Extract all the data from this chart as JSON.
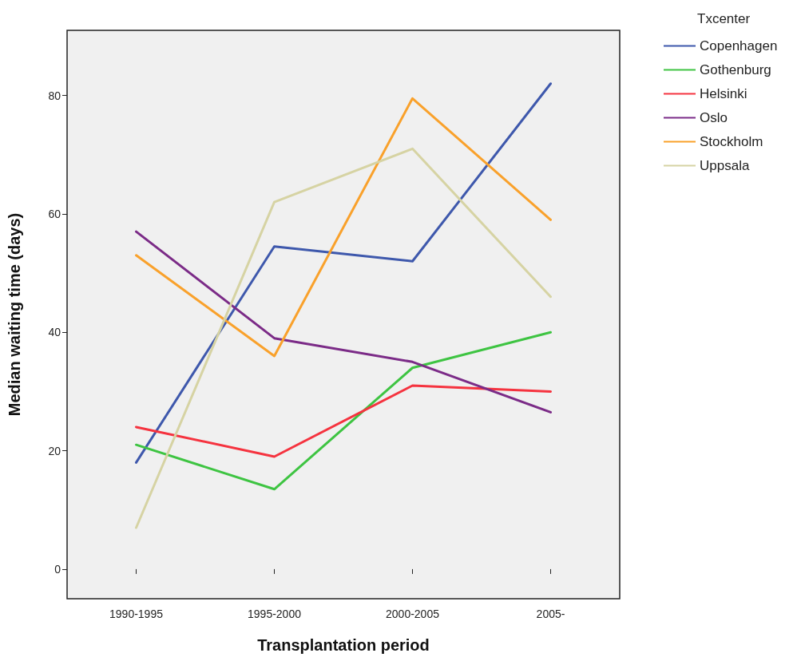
{
  "chart_data": {
    "type": "line",
    "xlabel": "Transplantation period",
    "ylabel": "Median waiting time (days)",
    "legend_title": "Txcenter",
    "categories": [
      "1990-1995",
      "1995-2000",
      "2000-2005",
      "2005-"
    ],
    "ylim": [
      -5,
      91
    ],
    "yticks": [
      0,
      20,
      40,
      60,
      80
    ],
    "grid": false,
    "legend": "top right",
    "marker": "none",
    "line_style": "solid",
    "series": [
      {
        "name": "Copenhagen",
        "color": "#3e58ac",
        "values": [
          18,
          54.5,
          52,
          82
        ]
      },
      {
        "name": "Gothenburg",
        "color": "#3ec442",
        "values": [
          21,
          13.5,
          34,
          40
        ]
      },
      {
        "name": "Helsinki",
        "color": "#f5333f",
        "values": [
          24,
          19,
          31,
          30
        ]
      },
      {
        "name": "Oslo",
        "color": "#7b2b87",
        "values": [
          57,
          39,
          35,
          26.5
        ]
      },
      {
        "name": "Stockholm",
        "color": "#f9a12b",
        "values": [
          53,
          36,
          79.5,
          59
        ]
      },
      {
        "name": "Uppsala",
        "color": "#d6d3a3",
        "values": [
          7,
          62,
          71,
          46
        ]
      }
    ]
  }
}
